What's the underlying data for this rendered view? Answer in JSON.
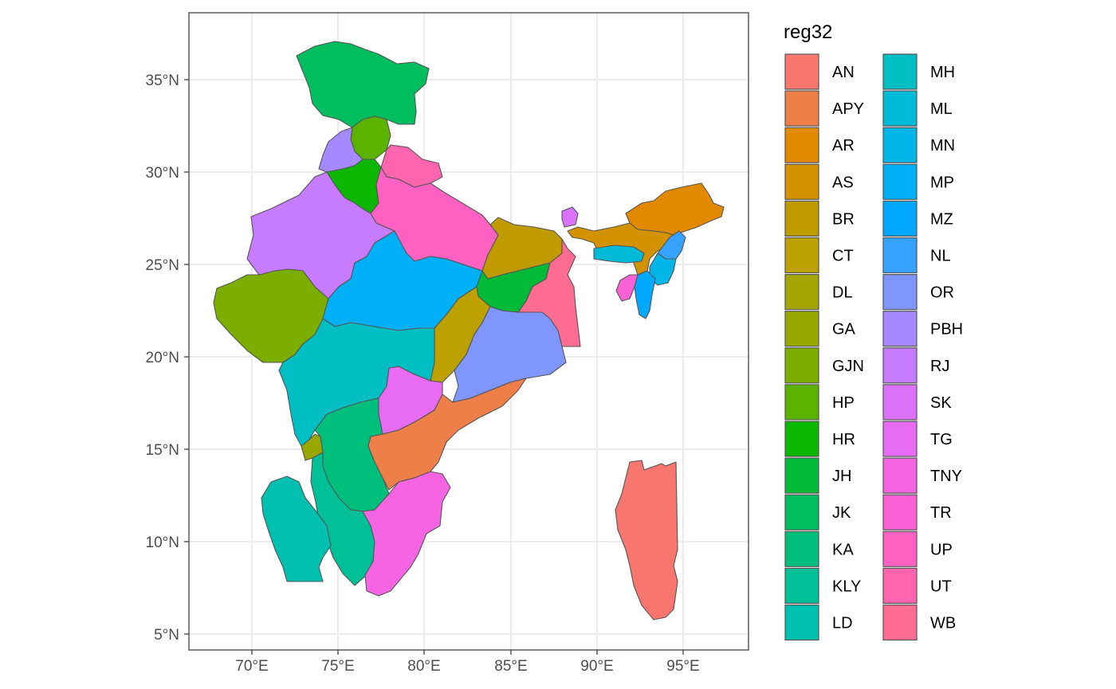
{
  "chart_data": {
    "type": "choropleth",
    "legend_title": "reg32",
    "x_ticks": [
      "70°E",
      "75°E",
      "80°E",
      "85°E",
      "90°E",
      "95°E"
    ],
    "y_ticks": [
      "35°N",
      "30°N",
      "25°N",
      "20°N",
      "15°N",
      "10°N",
      "5°N"
    ],
    "grid": true,
    "legend_position": "right",
    "regions": [
      {
        "code": "AN",
        "color": "#F8766D"
      },
      {
        "code": "APY",
        "color": "#EF7F49"
      },
      {
        "code": "AR",
        "color": "#E38900"
      },
      {
        "code": "AS",
        "color": "#D39200"
      },
      {
        "code": "BR",
        "color": "#C09B00"
      },
      {
        "code": "CT",
        "color": "#BCA100"
      },
      {
        "code": "DL",
        "color": "#A3A500"
      },
      {
        "code": "GA",
        "color": "#99A800"
      },
      {
        "code": "GJN",
        "color": "#7CAE00"
      },
      {
        "code": "HP",
        "color": "#5BB300"
      },
      {
        "code": "HR",
        "color": "#0CB702"
      },
      {
        "code": "JH",
        "color": "#00BA38"
      },
      {
        "code": "JK",
        "color": "#00BD5F"
      },
      {
        "code": "KA",
        "color": "#00BF7D"
      },
      {
        "code": "KLY",
        "color": "#00C097"
      },
      {
        "code": "LD",
        "color": "#00C0AF"
      },
      {
        "code": "MH",
        "color": "#00BFC4"
      },
      {
        "code": "ML",
        "color": "#00BBD7"
      },
      {
        "code": "MN",
        "color": "#00B5E8"
      },
      {
        "code": "MP",
        "color": "#00B0F6"
      },
      {
        "code": "MZ",
        "color": "#00A9FF"
      },
      {
        "code": "NL",
        "color": "#35A2FF"
      },
      {
        "code": "OR",
        "color": "#7F96FF"
      },
      {
        "code": "PBH",
        "color": "#A58AFF"
      },
      {
        "code": "RJ",
        "color": "#C77CFF"
      },
      {
        "code": "SK",
        "color": "#DC71FA"
      },
      {
        "code": "TG",
        "color": "#E76BF3"
      },
      {
        "code": "TNY",
        "color": "#F564E3"
      },
      {
        "code": "TR",
        "color": "#FB61D7"
      },
      {
        "code": "UP",
        "color": "#FF61C3"
      },
      {
        "code": "UT",
        "color": "#FF65AE"
      },
      {
        "code": "WB",
        "color": "#FF6C91"
      }
    ]
  }
}
